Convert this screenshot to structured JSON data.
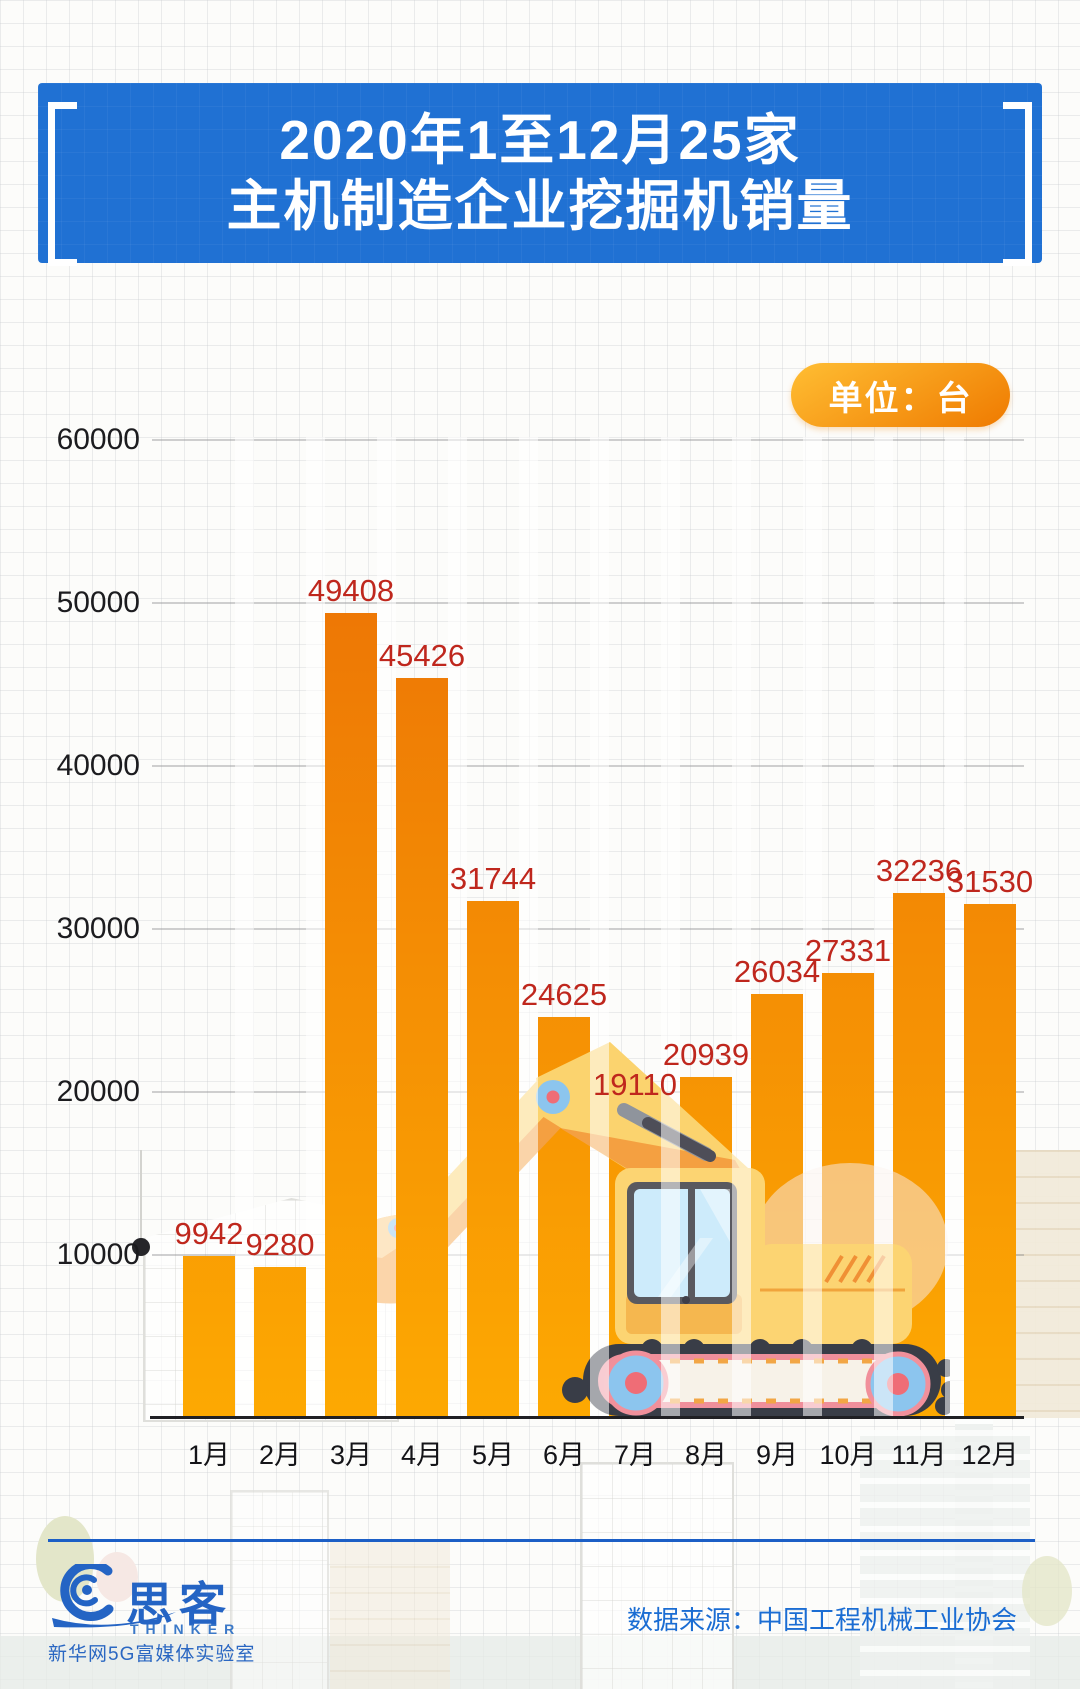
{
  "header": {
    "title_line1": "2020年1至12月25家",
    "title_line2": "主机制造企业挖掘机销量"
  },
  "unit_badge": {
    "label": "单位：台"
  },
  "chart_data": {
    "type": "bar",
    "title": "2020年1至12月25家主机制造企业挖掘机销量",
    "unit": "台",
    "categories": [
      "1月",
      "2月",
      "3月",
      "4月",
      "5月",
      "6月",
      "7月",
      "8月",
      "9月",
      "10月",
      "11月",
      "12月"
    ],
    "values": [
      9942,
      9280,
      49408,
      45426,
      31744,
      24625,
      19110,
      20939,
      26034,
      27331,
      32236,
      31530
    ],
    "y_ticks": [
      10000,
      20000,
      30000,
      40000,
      50000,
      60000
    ],
    "ylim": [
      0,
      60000
    ],
    "grid": true,
    "legend": false,
    "value_labels": true
  },
  "footer": {
    "brand_cn": "思客",
    "brand_en": "THINKER",
    "brand_org": "新华网5G富媒体实验室",
    "source": "数据来源：中国工程机械工业协会"
  },
  "icons": {
    "logo": "thinker-wave-logo-icon",
    "illustration": "excavator-illustration",
    "brackets": "title-bracket-icons"
  },
  "colors": {
    "banner_blue": "#2071d3",
    "bar_top": "#ea6d06",
    "bar_bottom": "#fda902",
    "value_red": "#bf271d",
    "badge_from": "#ffbe33",
    "badge_to": "#ef7a00",
    "footer_blue": "#2464c4",
    "source_blue": "#1b6dd3",
    "axis_dark": "#202024"
  }
}
